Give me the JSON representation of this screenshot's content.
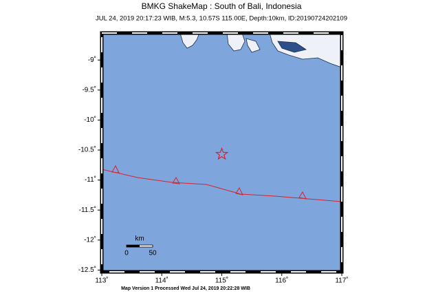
{
  "header": {
    "title": "BMKG ShakeMap : South of Bali, Indonesia",
    "subtitle": "JUL 24, 2019 20:17:23 WIB, M:5.3, 10.57S 115.00E, Depth:10km, ID:20190724202109"
  },
  "map": {
    "xlim": [
      113,
      117
    ],
    "ylim": [
      -12.53,
      -8.55
    ],
    "xticks": [
      {
        "value": 113,
        "label": "113˚"
      },
      {
        "value": 114,
        "label": "114˚"
      },
      {
        "value": 115,
        "label": "115˚"
      },
      {
        "value": 116,
        "label": "116˚"
      },
      {
        "value": 117,
        "label": "117˚"
      }
    ],
    "yticks": [
      {
        "value": -9,
        "label": "-9˚"
      },
      {
        "value": -9.5,
        "label": "-9.5˚"
      },
      {
        "value": -10,
        "label": "-10˚"
      },
      {
        "value": -10.5,
        "label": "-10.5˚"
      },
      {
        "value": -11,
        "label": "-11˚"
      },
      {
        "value": -11.5,
        "label": "-11.5˚"
      },
      {
        "value": -12,
        "label": "-12˚"
      },
      {
        "value": -12.5,
        "label": "-12.5˚"
      }
    ],
    "epicenter": {
      "lon": 115.0,
      "lat": -10.57
    },
    "scale_bar": {
      "unit": "km",
      "labels": [
        0,
        50
      ]
    }
  },
  "footer": "Map Version 1 Processed Wed Jul 24, 2019 20:22:28 WIB"
}
